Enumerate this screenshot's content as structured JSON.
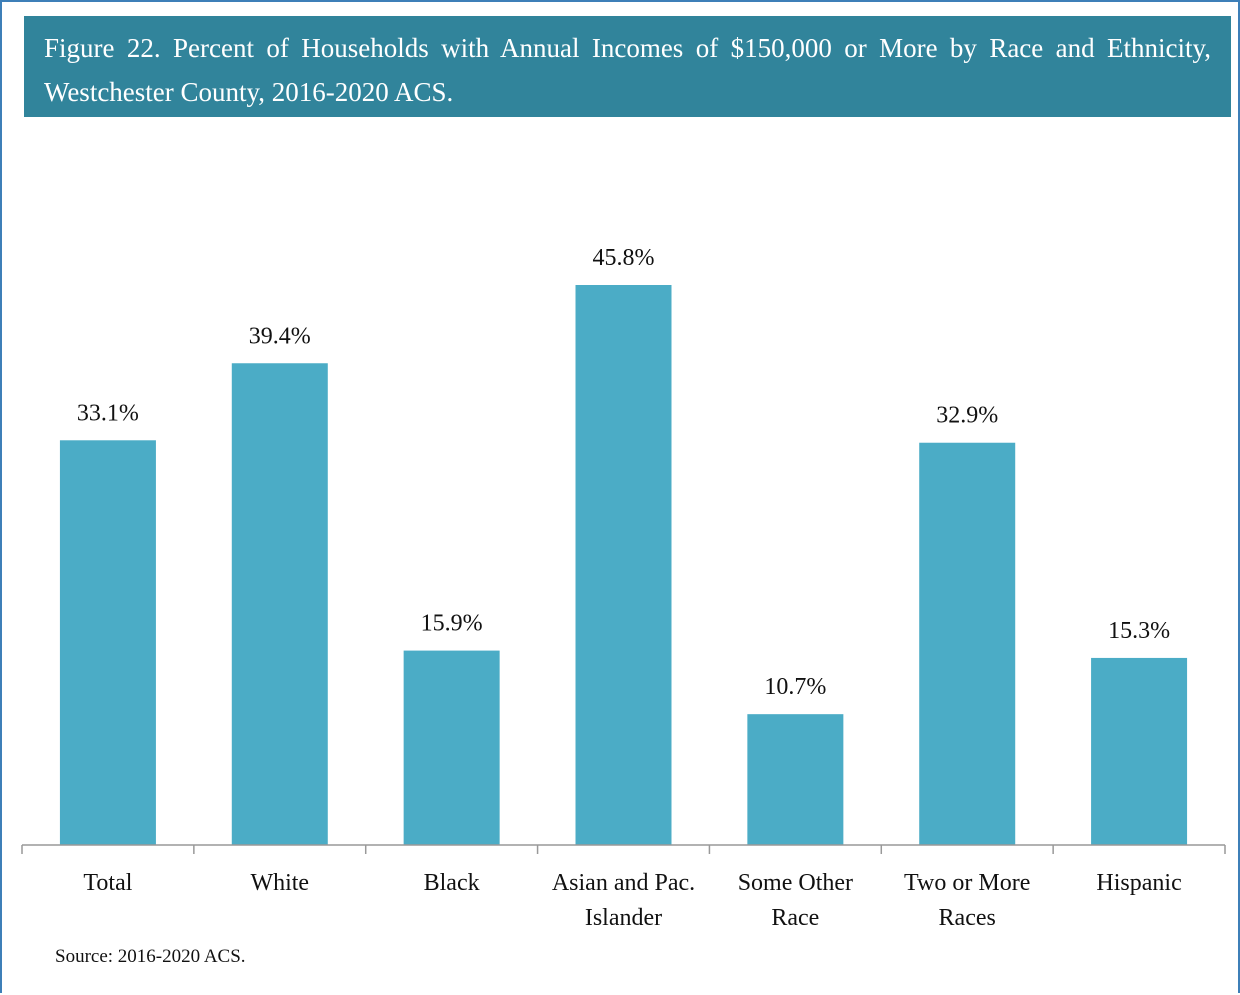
{
  "chart_data": {
    "type": "bar",
    "title": "Figure 22. Percent of Households with Annual Incomes of $150,000 or More by Race and Ethnicity, Westchester County, 2016-2020 ACS.",
    "categories": [
      "Total",
      "White",
      "Black",
      "Asian and Pac. Islander",
      "Some Other Race",
      "Two or More Races",
      "Hispanic"
    ],
    "values": [
      33.1,
      39.4,
      15.9,
      45.8,
      10.7,
      32.9,
      15.3
    ],
    "value_labels": [
      "33.1%",
      "39.4%",
      "15.9%",
      "45.8%",
      "10.7%",
      "32.9%",
      "15.3%"
    ],
    "color": "#4bacc6",
    "source": "Source: 2016-2020 ACS."
  }
}
